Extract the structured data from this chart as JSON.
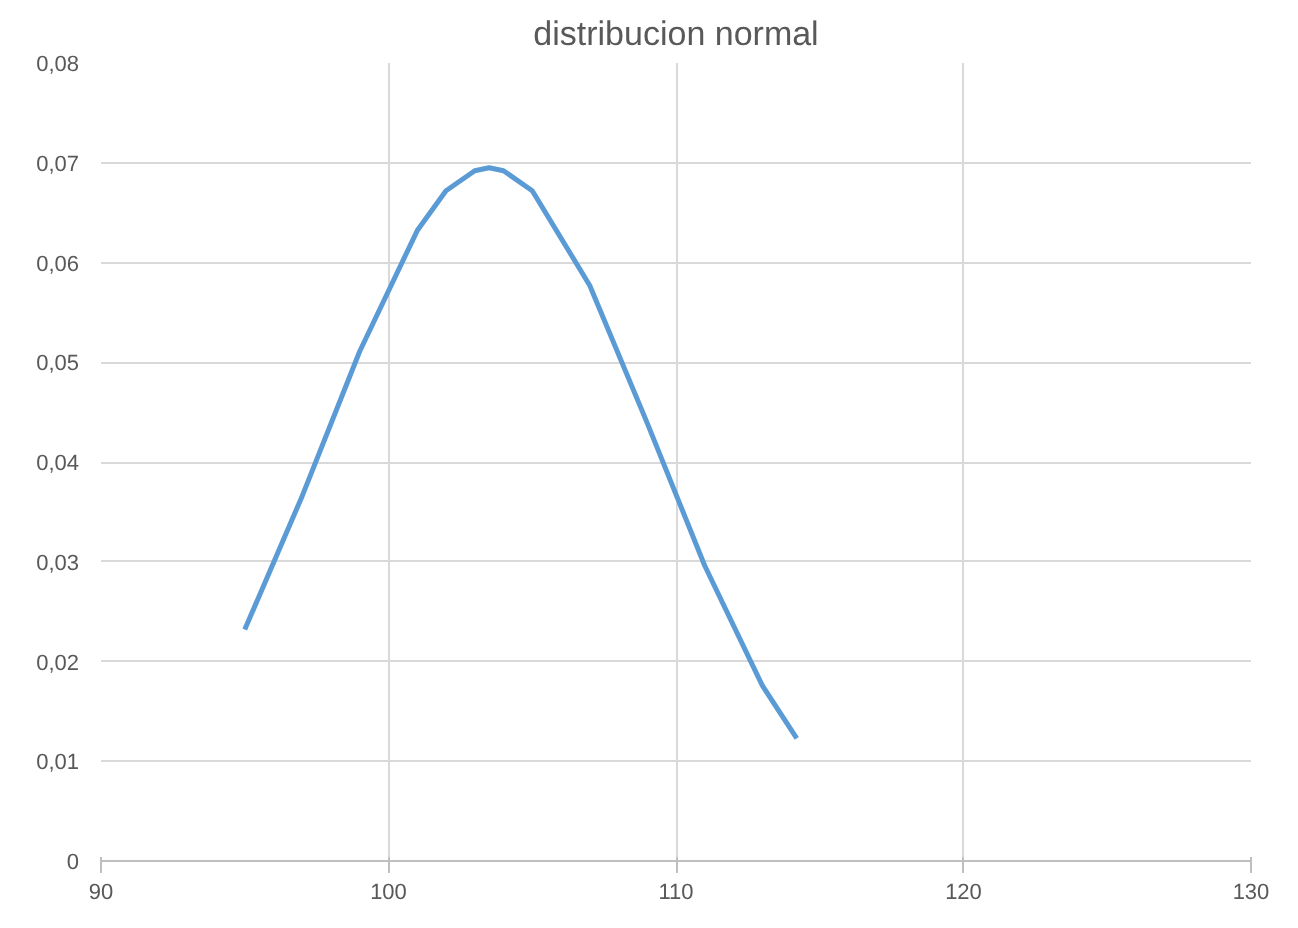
{
  "chart_data": {
    "type": "line",
    "title": "distribucion normal",
    "x": [
      95,
      97,
      99,
      101,
      102,
      103,
      103.5,
      104,
      105,
      107,
      109,
      111,
      113,
      114.2
    ],
    "series": [
      {
        "color": "#5b9bd5",
        "values": [
          0.0232,
          0.0366,
          0.0511,
          0.0632,
          0.0672,
          0.0692,
          0.0695,
          0.0692,
          0.0672,
          0.0577,
          0.0439,
          0.0296,
          0.0176,
          0.0123
        ]
      }
    ],
    "xlim": [
      90,
      130
    ],
    "xticks": [
      90,
      100,
      110,
      120,
      130
    ],
    "ylim": [
      0,
      0.08
    ],
    "yticks": [
      {
        "value": 0,
        "label": "0"
      },
      {
        "value": 0.01,
        "label": "0,01"
      },
      {
        "value": 0.02,
        "label": "0,02"
      },
      {
        "value": 0.03,
        "label": "0,03"
      },
      {
        "value": 0.04,
        "label": "0,04"
      },
      {
        "value": 0.05,
        "label": "0,05"
      },
      {
        "value": 0.06,
        "label": "0,06"
      },
      {
        "value": 0.07,
        "label": "0,07"
      },
      {
        "value": 0.08,
        "label": "0,08"
      }
    ],
    "grid": true,
    "marker": "none",
    "line_style": "solid"
  }
}
